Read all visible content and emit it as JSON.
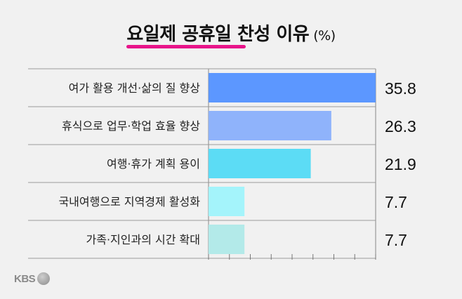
{
  "title": {
    "main": "요일제 공휴일 찬성 이유",
    "unit": "(%)"
  },
  "logo": {
    "text": "KBS"
  },
  "chart_data": {
    "type": "bar",
    "orientation": "horizontal",
    "title": "요일제 공휴일 찬성 이유",
    "unit": "(%)",
    "categories": [
      "여가 활용 개선·삶의 질 향상",
      "휴식으로 업무·학업 효율 향상",
      "여행·휴가 계획 용이",
      "국내여행으로 지역경제 활성화",
      "가족·지인과의 시간 확대"
    ],
    "values": [
      35.8,
      26.3,
      21.9,
      7.7,
      7.7
    ],
    "value_labels": [
      "35.8",
      "26.3",
      "21.9",
      "7.7",
      "7.7"
    ],
    "bar_colors": [
      "#5c97ff",
      "#8fb3fb",
      "#5cdcf5",
      "#a4f4fb",
      "#b3eae9"
    ],
    "xlim": [
      0,
      35.8
    ],
    "grid": false
  }
}
